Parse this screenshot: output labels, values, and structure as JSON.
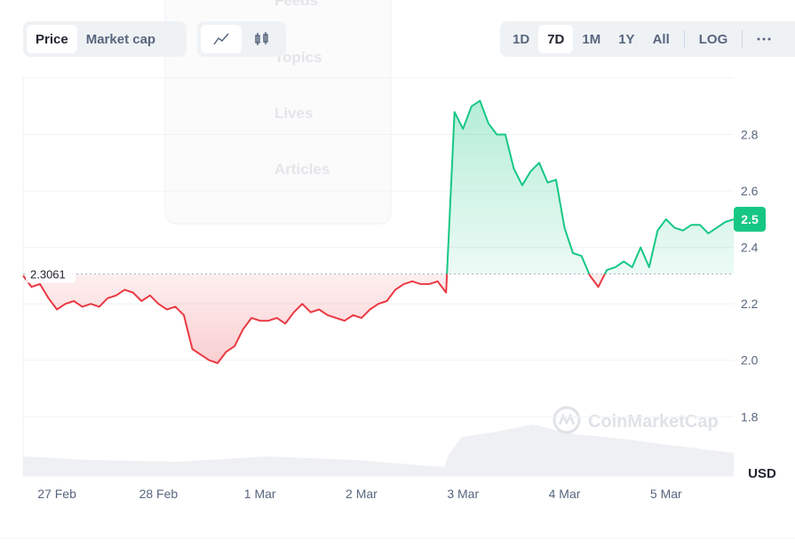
{
  "ui": {
    "metric_tabs": [
      "Price",
      "Market cap"
    ],
    "range_tabs": [
      "1D",
      "7D",
      "1M",
      "1Y",
      "All"
    ],
    "log_toggle": "LOG",
    "currency": "USD",
    "watermark": "CoinMarketCap",
    "overlay_menu": [
      "Feeds",
      "Topics",
      "Lives",
      "Articles"
    ]
  },
  "chart_data": {
    "type": "line",
    "categories": [
      null,
      null,
      null,
      null,
      "27 Feb",
      null,
      null,
      null,
      null,
      null,
      null,
      null,
      null,
      null,
      null,
      null,
      "28 Feb",
      null,
      null,
      null,
      null,
      null,
      null,
      null,
      null,
      null,
      null,
      null,
      "1 Mar",
      null,
      null,
      null,
      null,
      null,
      null,
      null,
      null,
      null,
      null,
      null,
      "2 Mar",
      null,
      null,
      null,
      null,
      null,
      null,
      null,
      null,
      null,
      null,
      null,
      "3 Mar",
      null,
      null,
      null,
      null,
      null,
      null,
      null,
      null,
      null,
      null,
      null,
      "4 Mar",
      null,
      null,
      null,
      null,
      null,
      null,
      null,
      null,
      null,
      null,
      null,
      "5 Mar",
      null,
      null,
      null,
      null,
      null,
      null,
      null,
      null
    ],
    "values": [
      2.3,
      2.26,
      2.27,
      2.22,
      2.18,
      2.2,
      2.21,
      2.19,
      2.2,
      2.19,
      2.22,
      2.23,
      2.25,
      2.24,
      2.21,
      2.23,
      2.2,
      2.18,
      2.19,
      2.16,
      2.04,
      2.02,
      2.0,
      1.99,
      2.03,
      2.05,
      2.11,
      2.15,
      2.14,
      2.14,
      2.15,
      2.13,
      2.17,
      2.2,
      2.17,
      2.18,
      2.16,
      2.15,
      2.14,
      2.16,
      2.15,
      2.18,
      2.2,
      2.21,
      2.25,
      2.27,
      2.28,
      2.27,
      2.27,
      2.28,
      2.24,
      2.88,
      2.82,
      2.9,
      2.92,
      2.84,
      2.8,
      2.8,
      2.68,
      2.62,
      2.67,
      2.7,
      2.63,
      2.64,
      2.47,
      2.38,
      2.37,
      2.3,
      2.26,
      2.32,
      2.33,
      2.35,
      2.33,
      2.4,
      2.33,
      2.46,
      2.5,
      2.47,
      2.46,
      2.48,
      2.48,
      2.45,
      2.47,
      2.49,
      2.5
    ],
    "baseline": 2.3061,
    "up_color": "#16c784",
    "down_color": "#ea3943",
    "ylim": [
      1.59,
      3.0
    ],
    "yticks": [
      1.8,
      {
        "value": 2,
        "label": "2.0"
      },
      2.2,
      2.4,
      2.6,
      2.8
    ],
    "grid": true
  }
}
